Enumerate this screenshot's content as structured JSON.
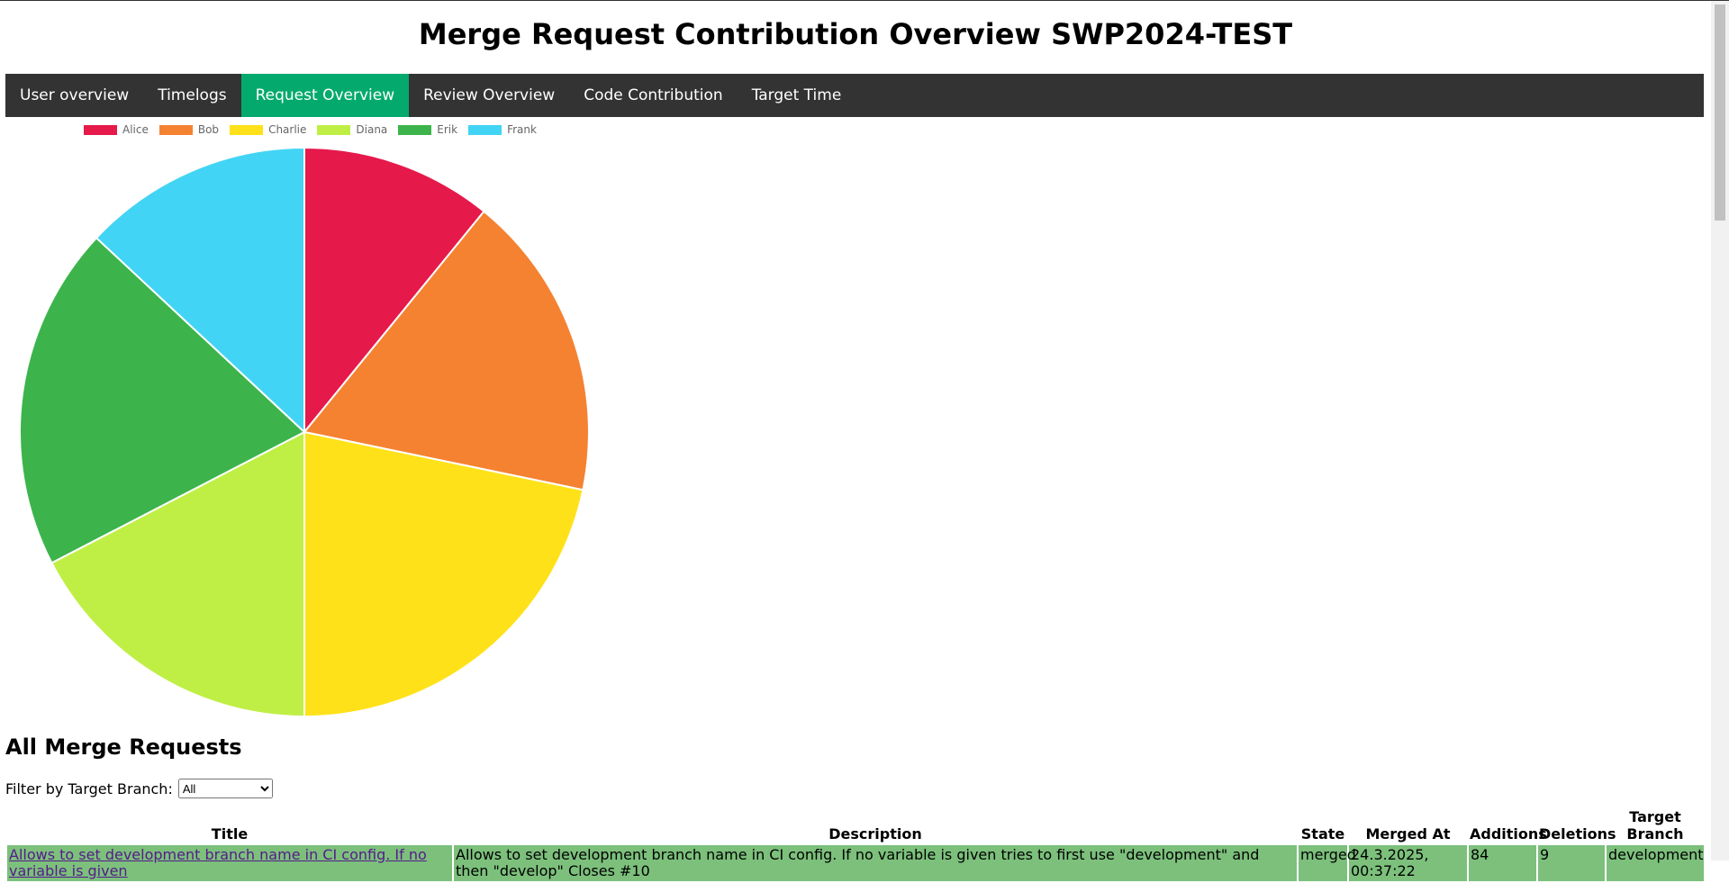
{
  "header": {
    "title": "Merge Request Contribution Overview SWP2024-TEST"
  },
  "nav": {
    "items": [
      "User overview",
      "Timelogs",
      "Request Overview",
      "Review Overview",
      "Code Contribution",
      "Target Time"
    ]
  },
  "chart_data": {
    "type": "pie",
    "categories": [
      "Alice",
      "Bob",
      "Charlie",
      "Diana",
      "Erik",
      "Frank"
    ],
    "values": [
      5,
      8,
      10,
      8,
      9,
      6
    ],
    "colors": [
      "#e6194b",
      "#f58231",
      "#ffe119",
      "#bfef45",
      "#3cb44b",
      "#42d4f4"
    ]
  },
  "section": {
    "title": "All Merge Requests",
    "filter_label": "Filter by Target Branch:",
    "filter_value": "All"
  },
  "table": {
    "columns": [
      "Title",
      "Description",
      "State",
      "Merged At",
      "Additions",
      "Deletions",
      "Target Branch"
    ],
    "rows": [
      [
        "Allows to set development branch name in CI config. If no variable is given",
        "Allows to set development branch name in CI config. If no variable is given tries to first use \"development\" and then \"develop\" Closes #10",
        "merged",
        "24.3.2025, 00:37:22",
        "84",
        "9",
        "development"
      ]
    ]
  }
}
